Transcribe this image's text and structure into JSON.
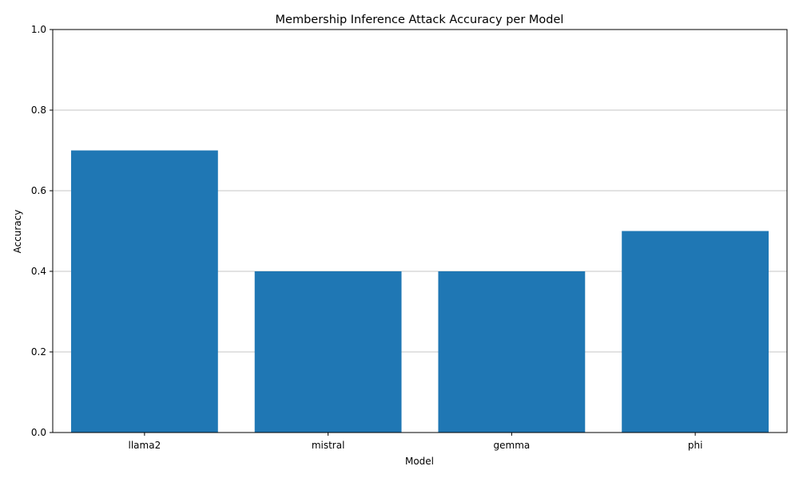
{
  "chart_data": {
    "type": "bar",
    "title": "Membership Inference Attack Accuracy per Model",
    "xlabel": "Model",
    "ylabel": "Accuracy",
    "categories": [
      "llama2",
      "mistral",
      "gemma",
      "phi"
    ],
    "values": [
      0.7,
      0.4,
      0.4,
      0.5
    ],
    "ylim": [
      0,
      1
    ],
    "yticks": [
      "0.0",
      "0.2",
      "0.4",
      "0.6",
      "0.8",
      "1.0"
    ],
    "grid": "y-axis horizontal gridlines",
    "legend": "none",
    "bar_color": "#1f77b4",
    "grid_color": "#b0b0b0"
  }
}
